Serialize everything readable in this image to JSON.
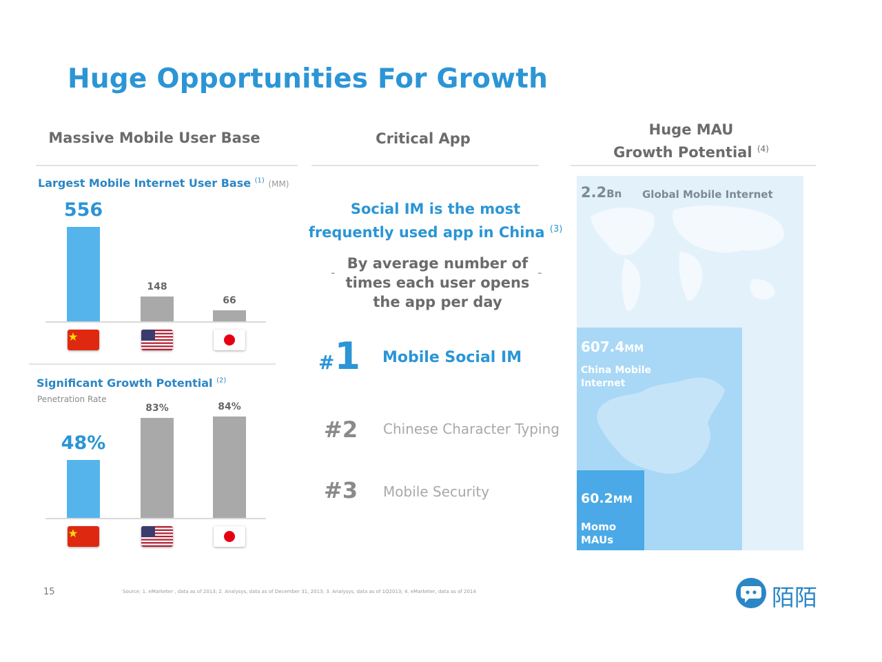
{
  "slide": {
    "title": "Huge Opportunities For Growth",
    "page_number": "15",
    "source_note": "Source: 1. eMarketer , data as of 2013; 2. Analysys, data as of December 31, 2013; 3. Analysys, data as of 1Q2013; 4. eMarketer, data as of 2014",
    "logo_text": "陌陌",
    "accent_color": "#2b95d6",
    "bar_highlight_color": "#56b4ec",
    "bar_neutral_color": "#a9a9a9"
  },
  "col1": {
    "heading": "Massive Mobile User Base",
    "chart1": {
      "title": "Largest Mobile Internet User Base",
      "footnote": "(1)",
      "unit": "(MM)"
    },
    "chart2": {
      "title": "Significant Growth Potential",
      "footnote": "(2)",
      "subtitle": "Penetration Rate"
    }
  },
  "col2": {
    "heading": "Critical App",
    "headline_line1": "Social IM is the most",
    "headline_line2": "frequently used app in China",
    "headline_footnote": "(3)",
    "sub_line1": "By average number of",
    "sub_line2": "times each user opens",
    "sub_line3": "the app per day",
    "dash": "-",
    "ranks": [
      {
        "hash": "#",
        "number": "1",
        "label": "Mobile Social IM"
      },
      {
        "rank": "#2",
        "label": "Chinese Character Typing"
      },
      {
        "rank": "#3",
        "label": "Mobile Security"
      }
    ]
  },
  "col3": {
    "heading_line1": "Huge MAU",
    "heading_line2": "Growth Potential",
    "heading_footnote": "(4)",
    "global": {
      "value": "2.2",
      "unit": "Bn",
      "label": "Global Mobile Internet"
    },
    "china": {
      "value": "607.4",
      "unit": "MM",
      "label_line1": "China Mobile",
      "label_line2": "Internet"
    },
    "momo": {
      "value": "60.2",
      "unit": "MM",
      "label_line1": "Momo",
      "label_line2": "MAUs"
    }
  },
  "chart_data": [
    {
      "type": "bar",
      "title": "Largest Mobile Internet User Base",
      "categories": [
        "China",
        "USA",
        "Japan"
      ],
      "values": [
        556,
        148,
        66
      ],
      "labels": [
        "556",
        "148",
        "66"
      ],
      "unit": "(MM)",
      "ylim": [
        0,
        556
      ]
    },
    {
      "type": "bar",
      "title": "Significant Growth Potential",
      "subtitle": "Penetration Rate",
      "categories": [
        "China",
        "USA",
        "Japan"
      ],
      "values": [
        48,
        83,
        84
      ],
      "labels": [
        "48%",
        "83%",
        "84%"
      ],
      "ylim": [
        0,
        100
      ]
    }
  ]
}
